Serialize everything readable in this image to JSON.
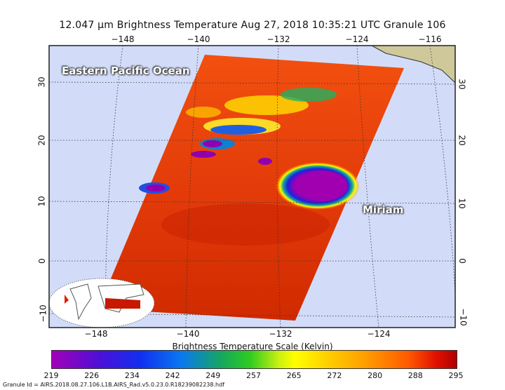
{
  "title": "12.047 µm Brightness Temperature   Aug 27, 2018 10:35:21 UTC   Granule 106",
  "map": {
    "top_lon_labels": [
      "−148",
      "−140",
      "−132",
      "−124",
      "−116"
    ],
    "bottom_lon_labels": [
      "−148",
      "−140",
      "−132",
      "−124"
    ],
    "lat_labels": [
      "30",
      "20",
      "10",
      "0",
      "−10"
    ],
    "region_label": "Eastern Pacific Ocean",
    "storm_label": "Miriam",
    "colors": {
      "ocean": "#d2dcf8",
      "land": "#cfc89a",
      "swath": "#e83a10"
    }
  },
  "colorbar": {
    "title": "Brightness Temperature Scale (Kelvin)",
    "ticks": [
      "219",
      "226",
      "234",
      "242",
      "249",
      "257",
      "265",
      "272",
      "280",
      "288",
      "295"
    ]
  },
  "granule_id": "Granule Id = AIRS.2018.08.27.106.L1B.AIRS_Rad.v5.0.23.0.R18239082238.hdf"
}
